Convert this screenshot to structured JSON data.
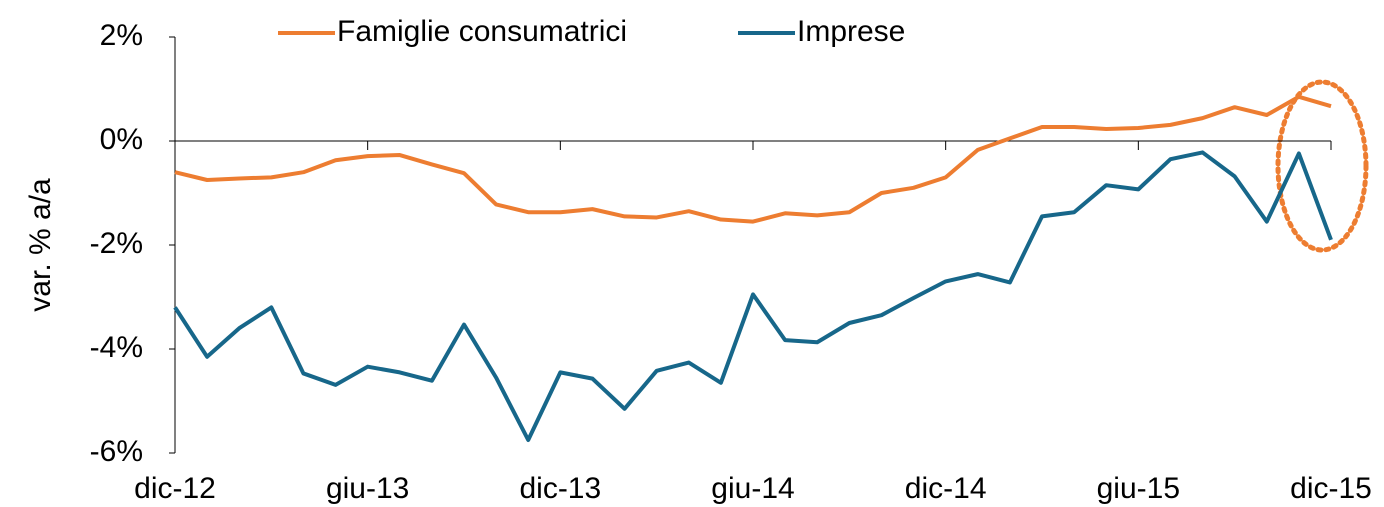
{
  "chart_data": {
    "type": "line",
    "y_label": "var. % a/a",
    "categories": [
      "dic-12",
      null,
      null,
      null,
      null,
      null,
      "giu-13",
      null,
      null,
      null,
      null,
      null,
      "dic-13",
      null,
      null,
      null,
      null,
      null,
      "giu-14",
      null,
      null,
      null,
      null,
      null,
      "dic-14",
      null,
      null,
      null,
      null,
      null,
      "giu-15",
      null,
      null,
      null,
      null,
      null,
      "dic-15"
    ],
    "series": [
      {
        "name": "Famiglie consumatrici",
        "color": "#ed7d31",
        "values": [
          -0.6,
          -0.75,
          -0.72,
          -0.7,
          -0.6,
          -0.37,
          -0.29,
          -0.27,
          -0.45,
          -0.62,
          -1.22,
          -1.37,
          -1.37,
          -1.31,
          -1.45,
          -1.47,
          -1.35,
          -1.51,
          -1.55,
          -1.39,
          -1.43,
          -1.37,
          -1.0,
          -0.9,
          -0.7,
          -0.17,
          0.05,
          0.27,
          0.27,
          0.23,
          0.25,
          0.31,
          0.44,
          0.65,
          0.5,
          0.85,
          0.67
        ]
      },
      {
        "name": "Imprese",
        "color": "#17678a",
        "values": [
          -3.2,
          -4.15,
          -3.6,
          -3.2,
          -4.47,
          -4.69,
          -4.34,
          -4.45,
          -4.61,
          -3.53,
          -4.55,
          -5.75,
          -4.45,
          -4.57,
          -5.15,
          -4.42,
          -4.26,
          -4.65,
          -2.95,
          -3.83,
          -3.87,
          -3.5,
          -3.35,
          -3.02,
          -2.7,
          -2.56,
          -2.72,
          -1.45,
          -1.37,
          -0.85,
          -0.93,
          -0.35,
          -0.22,
          -0.68,
          -1.55,
          -0.24,
          -1.9
        ]
      }
    ],
    "ylim": [
      -6,
      2
    ],
    "yticks": [
      {
        "value": -6,
        "label": "-6%"
      },
      {
        "value": -4,
        "label": "-4%"
      },
      {
        "value": -2,
        "label": "-2%"
      },
      {
        "value": 0,
        "label": "0%"
      },
      {
        "value": 2,
        "label": "2%"
      }
    ],
    "grid": false,
    "legend": "top"
  }
}
